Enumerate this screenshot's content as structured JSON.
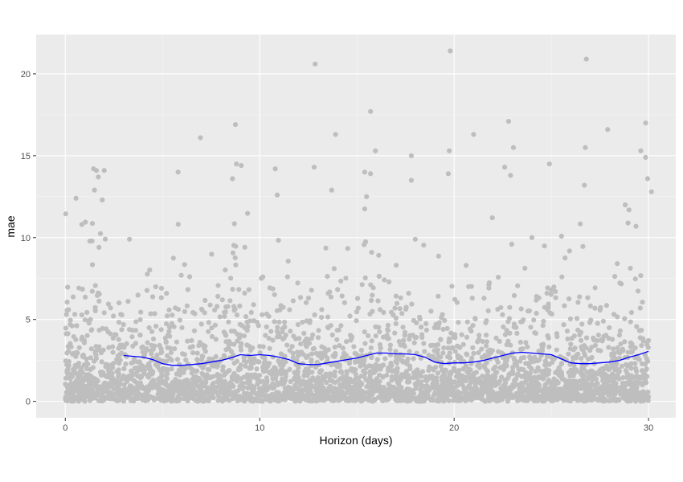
{
  "chart_data": {
    "type": "scatter",
    "xlabel": "Horizon (days)",
    "ylabel": "mae",
    "xlim": [
      -1.5,
      31.4
    ],
    "ylim": [
      -1.0,
      22.4
    ],
    "x_ticks": [
      0,
      10,
      20,
      30
    ],
    "y_ticks": [
      0,
      5,
      10,
      15,
      20
    ],
    "x_tick_labels": [
      "0",
      "10",
      "20",
      "30"
    ],
    "y_tick_labels": [
      "0",
      "5",
      "10",
      "15",
      "20"
    ],
    "grid": true,
    "panel_background": "#ebebeb",
    "point_color": "#bebebe",
    "line_color": "#0000ff",
    "scatter_points_approx_count": 3600,
    "scatter_outliers": [
      {
        "x": 0.55,
        "y": 12.4
      },
      {
        "x": 0.85,
        "y": 10.8
      },
      {
        "x": 1.45,
        "y": 14.2
      },
      {
        "x": 1.6,
        "y": 14.1
      },
      {
        "x": 1.7,
        "y": 13.7
      },
      {
        "x": 2.0,
        "y": 14.1
      },
      {
        "x": 1.5,
        "y": 12.9
      },
      {
        "x": 1.9,
        "y": 12.3
      },
      {
        "x": 5.8,
        "y": 14.0
      },
      {
        "x": 6.95,
        "y": 16.1
      },
      {
        "x": 8.75,
        "y": 16.9
      },
      {
        "x": 8.8,
        "y": 14.5
      },
      {
        "x": 9.05,
        "y": 14.4
      },
      {
        "x": 8.6,
        "y": 13.6
      },
      {
        "x": 10.8,
        "y": 14.2
      },
      {
        "x": 10.9,
        "y": 12.6
      },
      {
        "x": 12.85,
        "y": 20.6
      },
      {
        "x": 12.8,
        "y": 14.3
      },
      {
        "x": 13.9,
        "y": 16.3
      },
      {
        "x": 13.7,
        "y": 12.9
      },
      {
        "x": 15.7,
        "y": 17.7
      },
      {
        "x": 15.95,
        "y": 15.3
      },
      {
        "x": 15.4,
        "y": 14.0
      },
      {
        "x": 15.7,
        "y": 13.9
      },
      {
        "x": 17.8,
        "y": 15.0
      },
      {
        "x": 17.8,
        "y": 13.5
      },
      {
        "x": 19.8,
        "y": 21.4
      },
      {
        "x": 19.75,
        "y": 15.3
      },
      {
        "x": 19.7,
        "y": 13.9
      },
      {
        "x": 21.0,
        "y": 16.3
      },
      {
        "x": 22.8,
        "y": 17.1
      },
      {
        "x": 23.05,
        "y": 15.5
      },
      {
        "x": 22.6,
        "y": 14.3
      },
      {
        "x": 22.9,
        "y": 13.8
      },
      {
        "x": 24.9,
        "y": 14.5
      },
      {
        "x": 26.8,
        "y": 20.9
      },
      {
        "x": 26.75,
        "y": 15.5
      },
      {
        "x": 26.7,
        "y": 13.2
      },
      {
        "x": 27.9,
        "y": 16.6
      },
      {
        "x": 29.85,
        "y": 17.0
      },
      {
        "x": 29.6,
        "y": 15.3
      },
      {
        "x": 29.85,
        "y": 14.9
      },
      {
        "x": 29.95,
        "y": 13.6
      },
      {
        "x": 30.15,
        "y": 12.8
      },
      {
        "x": 28.8,
        "y": 12.0
      },
      {
        "x": 24.0,
        "y": 10.0
      },
      {
        "x": 18.0,
        "y": 9.9
      },
      {
        "x": 3.3,
        "y": 9.9
      }
    ],
    "series": [
      {
        "x": [
          3.0,
          3.5,
          4.0,
          4.5,
          5.0,
          5.5,
          6.0,
          6.5,
          7.0,
          7.5,
          8.0,
          8.5,
          9.0,
          9.5,
          10.0,
          10.5,
          11.0,
          11.5,
          12.0,
          12.5,
          13.0,
          13.5,
          14.0,
          14.5,
          15.0,
          15.5,
          16.0,
          16.5,
          17.0,
          17.5,
          18.0,
          18.5,
          19.0,
          19.5,
          20.0,
          20.5,
          21.0,
          21.5,
          22.0,
          22.5,
          23.0,
          23.5,
          24.0,
          24.5,
          25.0,
          25.5,
          26.0,
          26.5,
          27.0,
          27.5,
          28.0,
          28.5,
          29.0,
          29.5,
          30.0
        ],
        "values": [
          2.8,
          2.75,
          2.7,
          2.55,
          2.3,
          2.2,
          2.2,
          2.25,
          2.3,
          2.4,
          2.5,
          2.65,
          2.85,
          2.8,
          2.85,
          2.8,
          2.7,
          2.55,
          2.3,
          2.25,
          2.25,
          2.35,
          2.45,
          2.55,
          2.65,
          2.8,
          2.95,
          2.95,
          2.9,
          2.9,
          2.85,
          2.7,
          2.4,
          2.3,
          2.35,
          2.35,
          2.4,
          2.5,
          2.65,
          2.8,
          2.95,
          3.0,
          2.95,
          2.9,
          2.85,
          2.6,
          2.35,
          2.3,
          2.3,
          2.35,
          2.4,
          2.5,
          2.7,
          2.85,
          3.05
        ]
      }
    ]
  }
}
